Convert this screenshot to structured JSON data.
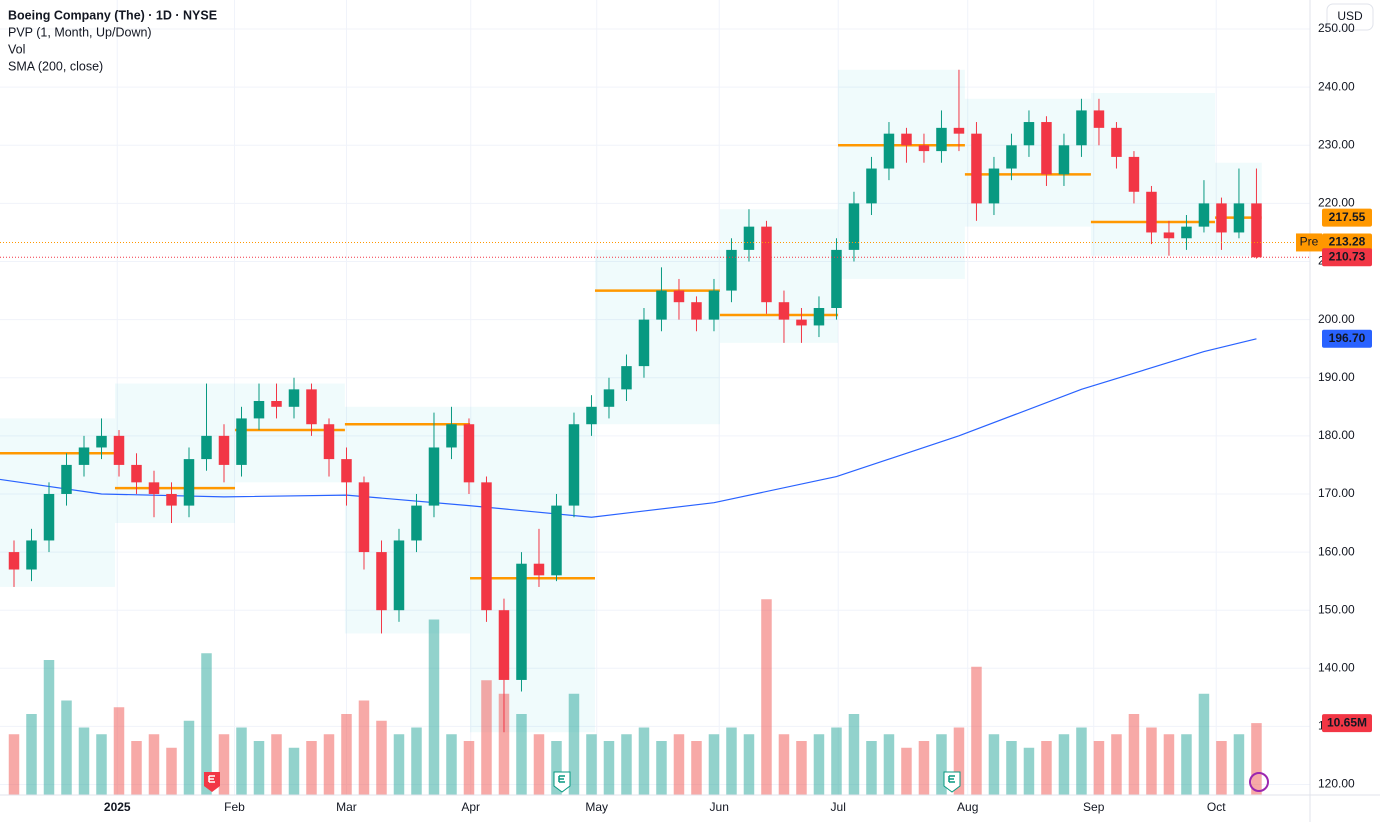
{
  "chart_data": {
    "type": "candlestick",
    "title": "Boeing Company (The) · 1D · NYSE",
    "indicators": [
      "PVP (1, Month, Up/Down)",
      "Vol",
      "SMA (200, close)"
    ],
    "currency": "USD",
    "up_color": "#089981",
    "down_color": "#f23645",
    "volume_up_color": "rgba(38,166,154,0.5)",
    "volume_down_color": "rgba(239,83,80,0.5)",
    "sma_color": "#2962ff",
    "poc_color": "#ff9800",
    "grid": true,
    "xlim": [
      -0.8,
      74.06
    ],
    "xticks": [
      {
        "value": 5.9,
        "label": "2025"
      },
      {
        "value": 12.6,
        "label": "Feb"
      },
      {
        "value": 19.0,
        "label": "Mar"
      },
      {
        "value": 26.1,
        "label": "Apr"
      },
      {
        "value": 33.3,
        "label": "May"
      },
      {
        "value": 40.3,
        "label": "Jun"
      },
      {
        "value": 47.1,
        "label": "Jul"
      },
      {
        "value": 54.5,
        "label": "Aug"
      },
      {
        "value": 61.7,
        "label": "Sep"
      },
      {
        "value": 68.7,
        "label": "Oct"
      }
    ],
    "ylim": [
      118.2,
      255
    ],
    "yticks": [
      {
        "value": 120,
        "label": "120.00"
      },
      {
        "value": 130,
        "label": "130.00"
      },
      {
        "value": 140,
        "label": "140.00"
      },
      {
        "value": 150,
        "label": "150.00"
      },
      {
        "value": 160,
        "label": "160.00"
      },
      {
        "value": 170,
        "label": "170.00"
      },
      {
        "value": 180,
        "label": "180.00"
      },
      {
        "value": 190,
        "label": "190.00"
      },
      {
        "value": 200,
        "label": "200.00"
      },
      {
        "value": 210,
        "label": "210.00"
      },
      {
        "value": 220,
        "label": "220.00"
      },
      {
        "value": 230,
        "label": "230.00"
      },
      {
        "value": 240,
        "label": "240.00"
      },
      {
        "value": 250,
        "label": "250.00"
      }
    ],
    "volume_lim": [
      0,
      40
    ],
    "candles": [
      [
        160,
        162,
        154,
        157
      ],
      [
        157,
        164,
        155,
        162
      ],
      [
        162,
        172,
        160,
        170
      ],
      [
        170,
        177,
        168,
        175
      ],
      [
        175,
        180,
        173,
        178
      ],
      [
        178,
        183,
        176,
        180
      ],
      [
        180,
        181,
        173,
        175
      ],
      [
        175,
        177,
        170,
        172
      ],
      [
        172,
        174,
        166,
        170
      ],
      [
        170,
        172,
        165,
        168
      ],
      [
        168,
        178,
        166,
        176
      ],
      [
        176,
        189,
        174,
        180
      ],
      [
        180,
        182,
        172,
        175
      ],
      [
        175,
        185,
        173,
        183
      ],
      [
        183,
        189,
        181,
        186
      ],
      [
        186,
        189,
        183,
        185
      ],
      [
        185,
        190,
        183,
        188
      ],
      [
        188,
        189,
        180,
        182
      ],
      [
        182,
        183,
        173,
        176
      ],
      [
        176,
        178,
        168,
        172
      ],
      [
        172,
        173,
        157,
        160
      ],
      [
        160,
        162,
        146,
        150
      ],
      [
        150,
        164,
        148,
        162
      ],
      [
        162,
        170,
        160,
        168
      ],
      [
        168,
        184,
        166,
        178
      ],
      [
        178,
        185,
        176,
        182
      ],
      [
        182,
        183,
        170,
        172
      ],
      [
        172,
        173,
        148,
        150
      ],
      [
        150,
        152,
        129,
        138
      ],
      [
        138,
        160,
        136,
        158
      ],
      [
        158,
        164,
        154,
        156
      ],
      [
        156,
        170,
        155,
        168
      ],
      [
        168,
        184,
        166,
        182
      ],
      [
        182,
        187,
        180,
        185
      ],
      [
        185,
        190,
        183,
        188
      ],
      [
        188,
        194,
        186,
        192
      ],
      [
        192,
        202,
        190,
        200
      ],
      [
        200,
        209,
        198,
        205
      ],
      [
        205,
        207,
        200,
        203
      ],
      [
        203,
        204,
        198,
        200
      ],
      [
        200,
        207,
        198,
        205
      ],
      [
        205,
        214,
        203,
        212
      ],
      [
        212,
        219,
        210,
        216
      ],
      [
        216,
        217,
        201,
        203
      ],
      [
        203,
        205,
        196,
        200
      ],
      [
        200,
        202,
        196,
        199
      ],
      [
        199,
        204,
        197,
        202
      ],
      [
        202,
        214,
        200,
        212
      ],
      [
        212,
        222,
        210,
        220
      ],
      [
        220,
        228,
        218,
        226
      ],
      [
        226,
        234,
        224,
        232
      ],
      [
        232,
        233,
        227,
        230
      ],
      [
        230,
        232,
        227,
        229
      ],
      [
        229,
        236,
        227,
        233
      ],
      [
        233,
        243,
        229,
        232
      ],
      [
        232,
        234,
        217,
        220
      ],
      [
        220,
        228,
        218,
        226
      ],
      [
        226,
        232,
        224,
        230
      ],
      [
        230,
        236,
        228,
        234
      ],
      [
        234,
        235,
        223,
        225
      ],
      [
        225,
        232,
        223,
        230
      ],
      [
        230,
        238,
        228,
        236
      ],
      [
        236,
        238,
        230,
        233
      ],
      [
        233,
        234,
        226,
        228
      ],
      [
        228,
        229,
        220,
        222
      ],
      [
        222,
        223,
        213,
        215
      ],
      [
        215,
        217,
        211,
        214
      ],
      [
        214,
        218,
        212,
        216
      ],
      [
        216,
        224,
        215,
        220
      ],
      [
        220,
        221,
        212,
        215
      ],
      [
        215,
        226,
        214,
        220
      ],
      [
        220,
        226,
        210.5,
        210.73
      ]
    ],
    "volumes": [
      9,
      12,
      20,
      14,
      10,
      9,
      13,
      8,
      9,
      7,
      11,
      21,
      9,
      10,
      8,
      9,
      7,
      8,
      9,
      12,
      14,
      11,
      9,
      10,
      26,
      9,
      8,
      17,
      15,
      12,
      9,
      8,
      15,
      9,
      8,
      9,
      10,
      8,
      9,
      8,
      9,
      10,
      9,
      29,
      9,
      8,
      9,
      10,
      12,
      8,
      9,
      7,
      8,
      9,
      10,
      19,
      9,
      8,
      7,
      8,
      9,
      10,
      8,
      9,
      12,
      10,
      9,
      9,
      15,
      8,
      9,
      10.65
    ],
    "sma": {
      "x": [
        -0.8,
        5,
        12,
        19,
        26,
        33,
        40,
        47,
        54,
        61,
        68,
        71
      ],
      "values": [
        172.5,
        170,
        169.5,
        169.8,
        168,
        166,
        168.5,
        173,
        180,
        188,
        194.5,
        196.7
      ]
    },
    "profiles": [
      {
        "start": -0.8,
        "end": 5.77,
        "low": 154,
        "high": 183,
        "poc": 177
      },
      {
        "start": 5.77,
        "end": 12.63,
        "low": 165,
        "high": 189,
        "poc": 171
      },
      {
        "start": 12.63,
        "end": 18.91,
        "low": 172,
        "high": 189,
        "poc": 181
      },
      {
        "start": 18.91,
        "end": 26.06,
        "low": 146,
        "high": 185,
        "poc": 182
      },
      {
        "start": 26.06,
        "end": 33.2,
        "low": 129,
        "high": 185,
        "poc": 155.5
      },
      {
        "start": 33.2,
        "end": 40.34,
        "low": 182,
        "high": 212,
        "poc": 205
      },
      {
        "start": 40.34,
        "end": 47.09,
        "low": 196,
        "high": 219,
        "poc": 200.8
      },
      {
        "start": 47.09,
        "end": 54.34,
        "low": 207,
        "high": 243,
        "poc": 230
      },
      {
        "start": 54.34,
        "end": 61.54,
        "low": 216,
        "high": 238,
        "poc": 225
      },
      {
        "start": 61.54,
        "end": 68.63,
        "low": 211,
        "high": 239,
        "poc": 216.8
      },
      {
        "start": 68.63,
        "end": 71.3,
        "low": 211,
        "high": 227,
        "poc": 217.55
      }
    ],
    "price_labels": [
      {
        "value": 217.55,
        "color": "#ff9800"
      },
      {
        "value": 213.28,
        "color": "#ff9800",
        "tag": "Pre"
      },
      {
        "value": 210.73,
        "color": "#f23645",
        "line": true
      },
      {
        "value": {
          "value": 196.7,
          "label": "196.70"
        },
        "color": "#2962ff"
      }
    ],
    "volume_label": {
      "value": 10.65,
      "label": "10.65M",
      "color": "#f23645"
    }
  }
}
